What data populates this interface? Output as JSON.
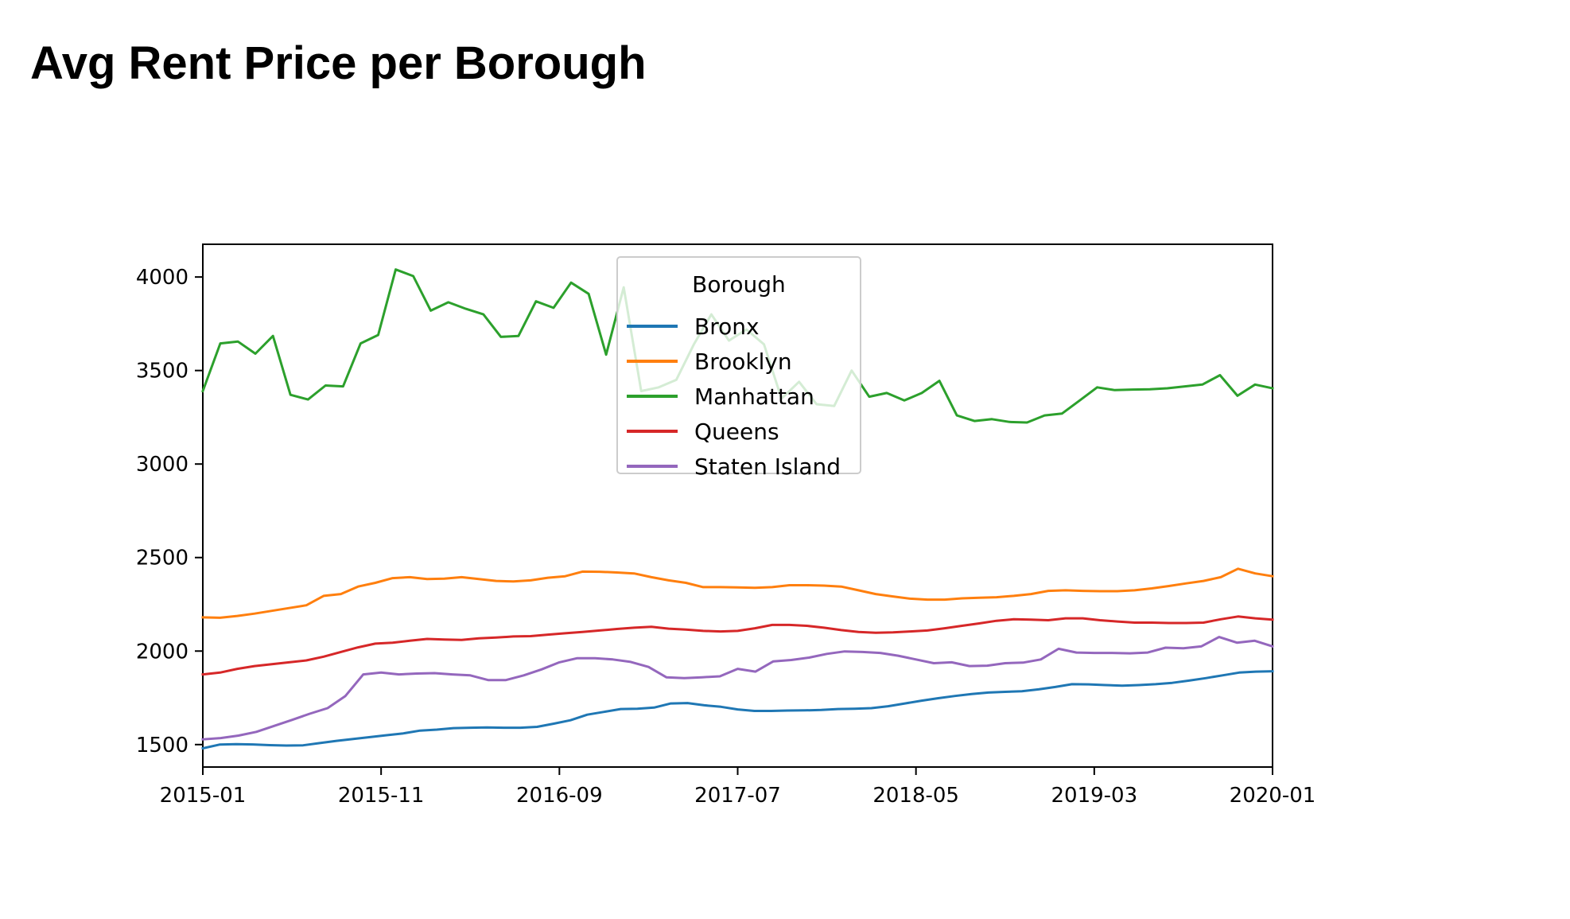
{
  "page": {
    "title": "Avg Rent Price per Borough"
  },
  "chart_data": {
    "type": "line",
    "title": "",
    "xlabel": "",
    "ylabel": "",
    "x_start": "2015-01",
    "x_end": "2020-01",
    "x_ticks": [
      "2015-01",
      "2015-11",
      "2016-09",
      "2017-07",
      "2018-05",
      "2019-03",
      "2020-01"
    ],
    "y_ticks": [
      1500,
      2000,
      2500,
      3000,
      3500,
      4000
    ],
    "ylim": [
      1380,
      4175
    ],
    "grid": false,
    "legend": {
      "title": "Borough",
      "position": "top-center"
    },
    "series": [
      {
        "name": "Bronx",
        "color": "#1f77b4",
        "values": [
          1480,
          1500,
          1502,
          1501,
          1497,
          1495,
          1496,
          1508,
          1520,
          1530,
          1540,
          1550,
          1560,
          1575,
          1580,
          1588,
          1590,
          1592,
          1590,
          1590,
          1595,
          1612,
          1630,
          1660,
          1675,
          1690,
          1692,
          1698,
          1720,
          1722,
          1710,
          1702,
          1688,
          1680,
          1680,
          1682,
          1683,
          1685,
          1690,
          1692,
          1695,
          1705,
          1720,
          1735,
          1748,
          1760,
          1770,
          1778,
          1782,
          1785,
          1795,
          1808,
          1823,
          1822,
          1818,
          1815,
          1818,
          1823,
          1830,
          1842,
          1855,
          1870,
          1885,
          1890,
          1892
        ]
      },
      {
        "name": "Brooklyn",
        "color": "#ff7f0e",
        "values": [
          2180,
          2178,
          2188,
          2200,
          2215,
          2230,
          2245,
          2295,
          2305,
          2345,
          2365,
          2390,
          2395,
          2385,
          2387,
          2395,
          2385,
          2375,
          2372,
          2378,
          2392,
          2400,
          2425,
          2424,
          2420,
          2415,
          2395,
          2378,
          2365,
          2342,
          2342,
          2340,
          2338,
          2342,
          2352,
          2352,
          2350,
          2345,
          2325,
          2305,
          2292,
          2280,
          2275,
          2275,
          2282,
          2285,
          2288,
          2295,
          2305,
          2322,
          2325,
          2322,
          2320,
          2320,
          2325,
          2335,
          2348,
          2362,
          2375,
          2395,
          2440,
          2415,
          2400
        ]
      },
      {
        "name": "Manhattan",
        "color": "#2ca02c",
        "values": [
          3390,
          3645,
          3655,
          3590,
          3685,
          3370,
          3345,
          3420,
          3415,
          3645,
          3690,
          4040,
          4005,
          3820,
          3865,
          3830,
          3800,
          3680,
          3685,
          3870,
          3835,
          3970,
          3910,
          3585,
          3945,
          3390,
          3410,
          3450,
          3640,
          3800,
          3660,
          3720,
          3640,
          3350,
          3440,
          3320,
          3310,
          3500,
          3360,
          3380,
          3340,
          3380,
          3445,
          3260,
          3230,
          3240,
          3225,
          3222,
          3260,
          3270,
          3340,
          3410,
          3395,
          3398,
          3400,
          3405,
          3415,
          3425,
          3475,
          3365,
          3425,
          3405
        ]
      },
      {
        "name": "Queens",
        "color": "#d62728",
        "values": [
          1875,
          1885,
          1905,
          1920,
          1930,
          1940,
          1950,
          1970,
          1995,
          2020,
          2040,
          2045,
          2055,
          2065,
          2062,
          2060,
          2068,
          2072,
          2078,
          2080,
          2088,
          2095,
          2102,
          2110,
          2118,
          2125,
          2130,
          2120,
          2115,
          2108,
          2105,
          2108,
          2122,
          2140,
          2140,
          2135,
          2125,
          2112,
          2102,
          2098,
          2100,
          2105,
          2110,
          2122,
          2135,
          2148,
          2162,
          2170,
          2168,
          2165,
          2175,
          2175,
          2165,
          2158,
          2152,
          2152,
          2150,
          2150,
          2152,
          2170,
          2185,
          2175,
          2168
        ]
      },
      {
        "name": "Staten Island",
        "color": "#9467bd",
        "values": [
          1528,
          1535,
          1548,
          1568,
          1600,
          1632,
          1665,
          1695,
          1760,
          1875,
          1885,
          1875,
          1880,
          1882,
          1875,
          1870,
          1845,
          1845,
          1870,
          1902,
          1940,
          1962,
          1962,
          1955,
          1942,
          1915,
          1860,
          1855,
          1860,
          1865,
          1905,
          1890,
          1945,
          1952,
          1965,
          1985,
          1998,
          1995,
          1990,
          1975,
          1955,
          1935,
          1940,
          1920,
          1922,
          1935,
          1938,
          1955,
          2012,
          1992,
          1990,
          1990,
          1988,
          1992,
          2018,
          2015,
          2025,
          2075,
          2045,
          2055,
          2025
        ]
      }
    ]
  }
}
